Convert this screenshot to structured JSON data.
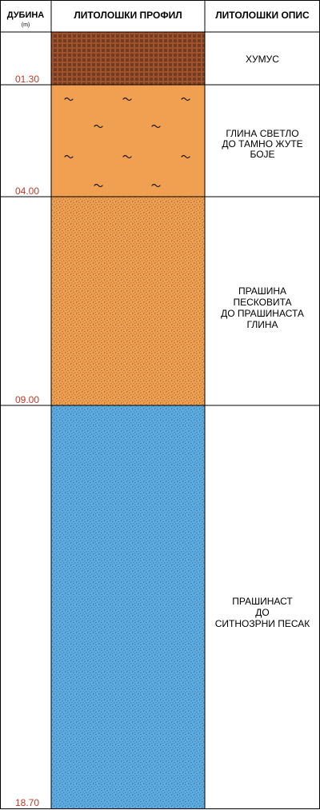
{
  "header": {
    "depth_title": "ДУБИНА",
    "depth_unit": "(m)",
    "profile_title": "ЛИТОЛОШКИ ПРОФИЛ",
    "description_title": "ЛИТОЛОШКИ ОПИС"
  },
  "depth_label_color": "#c0392b",
  "layers": [
    {
      "bottom_depth": "01.30",
      "description": [
        "ХУМУС"
      ],
      "pattern": "humus-pattern",
      "color": "#a0522d"
    },
    {
      "bottom_depth": "04.00",
      "description": [
        "ГЛИНА СВЕТЛО",
        "ДО ТАМНО ЖУТЕ",
        "БОЈЕ"
      ],
      "pattern": "clay-pattern",
      "color": "#f0a050"
    },
    {
      "bottom_depth": "09.00",
      "description": [
        "ПРАШИНА",
        "ПЕСКОВИТА",
        "ДО ПРАШИНАСТА",
        "ГЛИНА"
      ],
      "pattern": "dotted-pattern",
      "color": "#f0a050"
    },
    {
      "bottom_depth": "18.70",
      "description": [
        "ПРАШИНАСТ",
        "ДО",
        "СИТНОЗРНИ ПЕСАК"
      ],
      "pattern": "dotted-pattern",
      "color": "#5dade2"
    }
  ]
}
